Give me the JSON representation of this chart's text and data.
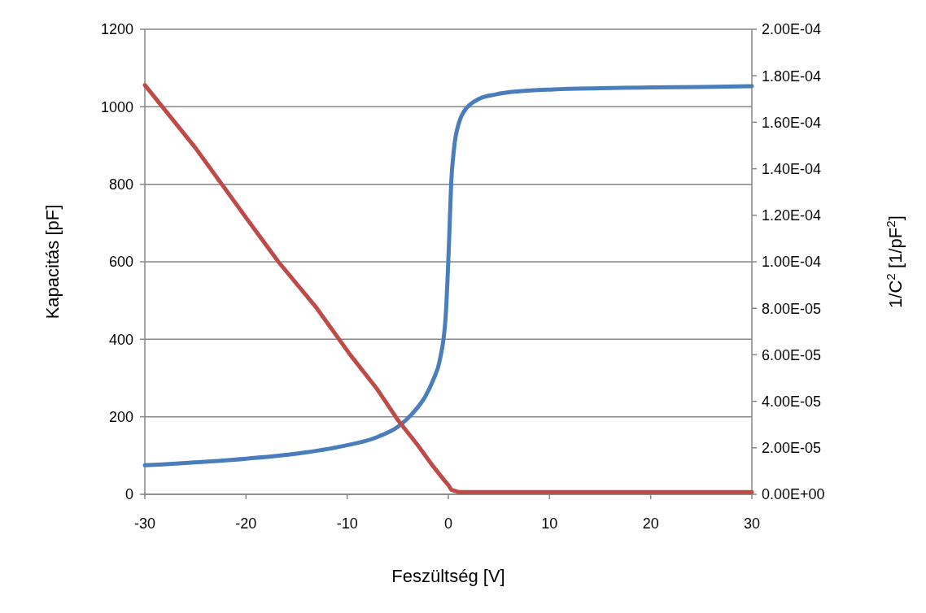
{
  "chart_data": {
    "type": "line",
    "xlabel": "Feszültség [V]",
    "ylabel": "Kapacitás [pF]",
    "y2label": "1/C$^{2}$ [1/pF$^{2}$]",
    "xlim": [
      -30,
      30
    ],
    "xticks": [
      -30,
      -20,
      -10,
      0,
      10,
      20,
      30
    ],
    "ylim": [
      0,
      1200
    ],
    "yticks": [
      0,
      200,
      400,
      600,
      800,
      1000,
      1200
    ],
    "y2lim": [
      0,
      0.0002
    ],
    "y2ticks": [
      {
        "value": 0,
        "label": "0.00E+00"
      },
      {
        "value": 2e-05,
        "label": "2.00E-05"
      },
      {
        "value": 4e-05,
        "label": "4.00E-05"
      },
      {
        "value": 6e-05,
        "label": "6.00E-05"
      },
      {
        "value": 8e-05,
        "label": "8.00E-05"
      },
      {
        "value": 0.0001,
        "label": "1.00E-04"
      },
      {
        "value": 0.00012,
        "label": "1.20E-04"
      },
      {
        "value": 0.00014,
        "label": "1.40E-04"
      },
      {
        "value": 0.00016,
        "label": "1.60E-04"
      },
      {
        "value": 0.00018,
        "label": "1.80E-04"
      },
      {
        "value": 0.0002,
        "label": "2.00E-04"
      }
    ],
    "grid": "y",
    "marker": "none",
    "line_style": "solid",
    "series": [
      {
        "color": "#4a7ebb",
        "x": [
          -30,
          -20,
          -15,
          -10.5,
          -7,
          -5,
          -3.5,
          -2.25,
          -1.5,
          -0.83,
          -0.27,
          0.05,
          0.28,
          0.56,
          1.1,
          1.6,
          2.2,
          3,
          4.7,
          7,
          10.4,
          15,
          20,
          25,
          30
        ],
        "values": [
          75,
          92,
          105,
          124,
          148,
          174,
          210,
          254,
          295,
          348,
          457,
          638,
          803,
          892,
          963,
          990,
          1007,
          1020,
          1032,
          1040,
          1045,
          1048,
          1050,
          1051,
          1053
        ]
      },
      {
        "color": "#be4b48",
        "axis": "y2",
        "x": [
          -30,
          -25,
          -20,
          -16.8,
          -13,
          -9.7,
          -7,
          -5,
          -3,
          -1.5,
          -0.4,
          0,
          0.28,
          1,
          2.5,
          5,
          10,
          20,
          30
        ],
        "values": [
          0.000176,
          0.000149,
          0.000119,
          0.0001,
          8e-05,
          6e-05,
          4.5e-05,
          3.2e-05,
          2.1e-05,
          1.2e-05,
          6e-06,
          4e-06,
          2e-06,
          1e-06,
          1e-06,
          1e-06,
          1e-06,
          1e-06,
          1e-06
        ]
      }
    ]
  }
}
